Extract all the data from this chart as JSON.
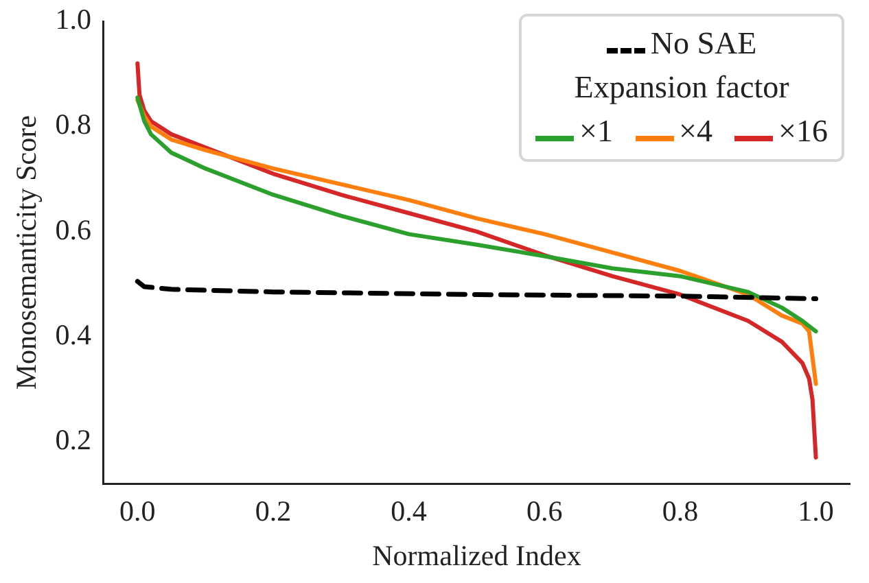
{
  "chart_data": {
    "type": "line",
    "xlabel": "Normalized Index",
    "ylabel": "Monosemanticity Score",
    "legend_title": "Expansion factor",
    "legend": "top right",
    "grid": false,
    "marker": "none",
    "xlim": [
      -0.05,
      1.05
    ],
    "ylim": [
      0.12,
      1.0
    ],
    "xticks": [
      {
        "value": 0,
        "label": "0.0"
      },
      {
        "value": 0.2,
        "label": "0.2"
      },
      {
        "value": 0.4,
        "label": "0.4"
      },
      {
        "value": 0.6,
        "label": "0.6"
      },
      {
        "value": 0.8,
        "label": "0.8"
      },
      {
        "value": 1,
        "label": "1.0"
      }
    ],
    "yticks": [
      {
        "value": 0.2,
        "label": "0.2"
      },
      {
        "value": 0.4,
        "label": "0.4"
      },
      {
        "value": 0.6,
        "label": "0.6"
      },
      {
        "value": 0.8,
        "label": "0.8"
      },
      {
        "value": 1,
        "label": "1.0"
      }
    ],
    "series": [
      {
        "name": "No SAE",
        "color": "#000000",
        "line_style": "dashed",
        "x": [
          0,
          0.01,
          0.05,
          0.2,
          0.5,
          0.8,
          1.0
        ],
        "values": [
          0.505,
          0.495,
          0.49,
          0.485,
          0.48,
          0.477,
          0.472
        ]
      },
      {
        "name": "×1",
        "color": "#2ca02c",
        "line_style": "solid",
        "x": [
          0,
          0.01,
          0.02,
          0.05,
          0.1,
          0.2,
          0.3,
          0.4,
          0.5,
          0.6,
          0.7,
          0.8,
          0.9,
          0.95,
          0.98,
          1.0
        ],
        "values": [
          0.855,
          0.81,
          0.785,
          0.75,
          0.72,
          0.67,
          0.63,
          0.595,
          0.575,
          0.553,
          0.53,
          0.515,
          0.485,
          0.455,
          0.43,
          0.41
        ]
      },
      {
        "name": "×4",
        "color": "#ff7f0e",
        "line_style": "solid",
        "x": [
          0,
          0.01,
          0.02,
          0.05,
          0.1,
          0.2,
          0.3,
          0.4,
          0.5,
          0.6,
          0.7,
          0.8,
          0.9,
          0.95,
          0.98,
          0.99,
          1.0
        ],
        "values": [
          0.85,
          0.82,
          0.8,
          0.775,
          0.755,
          0.72,
          0.69,
          0.66,
          0.625,
          0.595,
          0.56,
          0.525,
          0.48,
          0.44,
          0.425,
          0.41,
          0.31
        ]
      },
      {
        "name": "×16",
        "color": "#d62728",
        "line_style": "solid",
        "x": [
          0,
          0.003,
          0.01,
          0.02,
          0.05,
          0.1,
          0.2,
          0.3,
          0.4,
          0.5,
          0.6,
          0.7,
          0.8,
          0.9,
          0.95,
          0.98,
          0.99,
          0.995,
          1.0
        ],
        "values": [
          0.92,
          0.86,
          0.83,
          0.81,
          0.785,
          0.76,
          0.71,
          0.67,
          0.635,
          0.6,
          0.555,
          0.515,
          0.48,
          0.43,
          0.39,
          0.35,
          0.32,
          0.28,
          0.17
        ]
      }
    ]
  }
}
